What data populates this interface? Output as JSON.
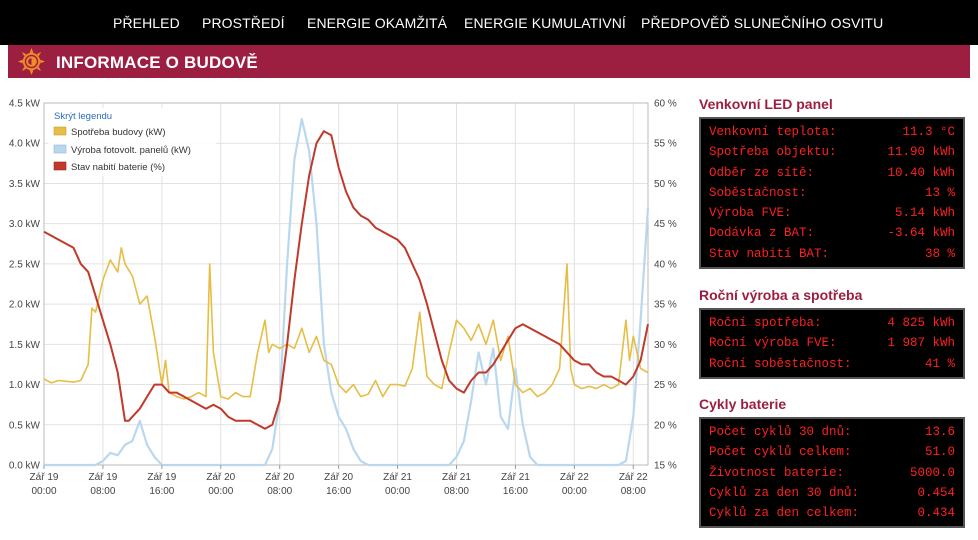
{
  "nav": {
    "items": [
      {
        "label": "PŘEHLED"
      },
      {
        "label": "PROSTŘEDÍ"
      },
      {
        "label": "ENERGIE OKAMŽITÁ"
      },
      {
        "label": "ENERGIE KUMULATIVNÍ"
      },
      {
        "label": "PŘEDPOVĚĎ SLUNEČNÍHO OSVITU"
      }
    ]
  },
  "banner": {
    "title": "INFORMACE O BUDOVĚ",
    "logo_icon": "sun-logo-icon"
  },
  "colors": {
    "brand": "#9c1f42",
    "consumption": "#e6bd45",
    "pv": "#b9d8ef",
    "battery": "#c0392b",
    "led_text": "#ff1f1f"
  },
  "chart_data": {
    "type": "line",
    "legend_toggle": "Skrýt legendu",
    "legend_position": "top-left",
    "grid": true,
    "x_ticks": [
      {
        "day": "Zář 19",
        "time": "00:00"
      },
      {
        "day": "Zář 19",
        "time": "08:00"
      },
      {
        "day": "Zář 19",
        "time": "16:00"
      },
      {
        "day": "Zář 20",
        "time": "00:00"
      },
      {
        "day": "Zář 20",
        "time": "08:00"
      },
      {
        "day": "Zář 20",
        "time": "16:00"
      },
      {
        "day": "Zář 21",
        "time": "00:00"
      },
      {
        "day": "Zář 21",
        "time": "08:00"
      },
      {
        "day": "Zář 21",
        "time": "16:00"
      },
      {
        "day": "Zář 22",
        "time": "00:00"
      },
      {
        "day": "Zář 22",
        "time": "08:00"
      }
    ],
    "x_hours_range": [
      0,
      82
    ],
    "y_left": {
      "ticks": [
        "0.0 kW",
        "0.5 kW",
        "1.0 kW",
        "1.5 kW",
        "2.0 kW",
        "2.5 kW",
        "3.0 kW",
        "3.5 kW",
        "4.0 kW",
        "4.5 kW"
      ],
      "range": [
        0,
        4.5
      ]
    },
    "y_right": {
      "ticks": [
        "15 %",
        "20 %",
        "25 %",
        "30 %",
        "35 %",
        "40 %",
        "45 %",
        "50 %",
        "55 %",
        "60 %"
      ],
      "range": [
        15,
        60
      ]
    },
    "series": [
      {
        "name": "Spotřeba budovy (kW)",
        "axis": "left",
        "points": [
          [
            0,
            1.07
          ],
          [
            1,
            1.02
          ],
          [
            2,
            1.05
          ],
          [
            4,
            1.03
          ],
          [
            5,
            1.05
          ],
          [
            6,
            1.25
          ],
          [
            6.5,
            1.95
          ],
          [
            7,
            1.9
          ],
          [
            8,
            2.3
          ],
          [
            9,
            2.55
          ],
          [
            10,
            2.4
          ],
          [
            10.5,
            2.7
          ],
          [
            11,
            2.5
          ],
          [
            12,
            2.35
          ],
          [
            13,
            2.0
          ],
          [
            14,
            2.1
          ],
          [
            15,
            1.6
          ],
          [
            16,
            1.0
          ],
          [
            16.5,
            1.3
          ],
          [
            17,
            0.9
          ],
          [
            18,
            0.85
          ],
          [
            19,
            0.82
          ],
          [
            20,
            0.85
          ],
          [
            21,
            0.9
          ],
          [
            22,
            0.85
          ],
          [
            22.5,
            2.5
          ],
          [
            23,
            1.4
          ],
          [
            24,
            0.85
          ],
          [
            25,
            0.82
          ],
          [
            26,
            0.9
          ],
          [
            27,
            0.85
          ],
          [
            28,
            0.85
          ],
          [
            29,
            1.4
          ],
          [
            30,
            1.8
          ],
          [
            30.5,
            1.4
          ],
          [
            31,
            1.5
          ],
          [
            32,
            1.45
          ],
          [
            33,
            1.5
          ],
          [
            34,
            1.45
          ],
          [
            35,
            1.7
          ],
          [
            36,
            1.4
          ],
          [
            37,
            1.6
          ],
          [
            38,
            1.3
          ],
          [
            39,
            1.25
          ],
          [
            40,
            1.0
          ],
          [
            41,
            0.9
          ],
          [
            42,
            1.0
          ],
          [
            43,
            0.85
          ],
          [
            44,
            0.88
          ],
          [
            45,
            1.05
          ],
          [
            46,
            0.85
          ],
          [
            47,
            1.0
          ],
          [
            48,
            1.0
          ],
          [
            49,
            0.98
          ],
          [
            50,
            1.2
          ],
          [
            51,
            1.9
          ],
          [
            51.5,
            1.5
          ],
          [
            52,
            1.1
          ],
          [
            53,
            1.0
          ],
          [
            54,
            0.95
          ],
          [
            55,
            1.4
          ],
          [
            56,
            1.8
          ],
          [
            57,
            1.7
          ],
          [
            58,
            1.55
          ],
          [
            59,
            1.75
          ],
          [
            60,
            1.5
          ],
          [
            61,
            1.8
          ],
          [
            62,
            1.3
          ],
          [
            63,
            1.6
          ],
          [
            64,
            1.0
          ],
          [
            65,
            0.9
          ],
          [
            66,
            0.95
          ],
          [
            67,
            0.85
          ],
          [
            68,
            0.9
          ],
          [
            69,
            1.0
          ],
          [
            70,
            1.2
          ],
          [
            71,
            2.5
          ],
          [
            71.5,
            1.2
          ],
          [
            72,
            1.0
          ],
          [
            73,
            0.95
          ],
          [
            74,
            0.98
          ],
          [
            75,
            0.95
          ],
          [
            76,
            1.0
          ],
          [
            77,
            0.95
          ],
          [
            78,
            1.0
          ],
          [
            79,
            1.8
          ],
          [
            79.5,
            1.3
          ],
          [
            80,
            1.6
          ],
          [
            81,
            1.2
          ],
          [
            82,
            1.15
          ]
        ]
      },
      {
        "name": "Výroba fotovolt. panelů (kW)",
        "axis": "left",
        "points": [
          [
            0,
            0.0
          ],
          [
            7,
            0.0
          ],
          [
            8,
            0.05
          ],
          [
            9,
            0.15
          ],
          [
            10,
            0.12
          ],
          [
            11,
            0.25
          ],
          [
            12,
            0.3
          ],
          [
            13,
            0.55
          ],
          [
            14,
            0.25
          ],
          [
            15,
            0.1
          ],
          [
            16,
            0.0
          ],
          [
            30,
            0.0
          ],
          [
            31,
            0.2
          ],
          [
            32,
            0.8
          ],
          [
            33,
            2.5
          ],
          [
            34,
            3.8
          ],
          [
            35,
            4.3
          ],
          [
            36,
            3.9
          ],
          [
            37,
            3.0
          ],
          [
            38,
            1.5
          ],
          [
            39,
            0.9
          ],
          [
            40,
            0.6
          ],
          [
            41,
            0.45
          ],
          [
            42,
            0.2
          ],
          [
            43,
            0.05
          ],
          [
            44,
            0.0
          ],
          [
            55,
            0.0
          ],
          [
            56,
            0.1
          ],
          [
            57,
            0.3
          ],
          [
            58,
            0.8
          ],
          [
            59,
            1.4
          ],
          [
            60,
            1.0
          ],
          [
            61,
            1.45
          ],
          [
            62,
            0.6
          ],
          [
            63,
            0.45
          ],
          [
            64,
            1.2
          ],
          [
            65,
            0.5
          ],
          [
            66,
            0.1
          ],
          [
            67,
            0.0
          ],
          [
            78,
            0.0
          ],
          [
            79,
            0.05
          ],
          [
            80,
            0.6
          ],
          [
            81,
            1.8
          ],
          [
            82,
            3.2
          ]
        ]
      },
      {
        "name": "Stav nabití baterie (%)",
        "axis": "right",
        "points": [
          [
            0,
            44
          ],
          [
            1,
            43.5
          ],
          [
            2,
            43
          ],
          [
            3,
            42.5
          ],
          [
            4,
            42
          ],
          [
            5,
            40
          ],
          [
            6,
            39
          ],
          [
            7,
            36
          ],
          [
            8,
            33
          ],
          [
            9,
            30
          ],
          [
            10,
            26.5
          ],
          [
            11,
            20.5
          ],
          [
            11.5,
            20.5
          ],
          [
            12,
            21
          ],
          [
            13,
            22
          ],
          [
            14,
            23.5
          ],
          [
            15,
            25
          ],
          [
            16,
            25
          ],
          [
            17,
            24
          ],
          [
            18,
            24
          ],
          [
            19,
            23.5
          ],
          [
            20,
            23
          ],
          [
            21,
            22.5
          ],
          [
            22,
            22
          ],
          [
            23,
            22.5
          ],
          [
            24,
            22
          ],
          [
            25,
            21
          ],
          [
            26,
            20.5
          ],
          [
            27,
            20.5
          ],
          [
            28,
            20.5
          ],
          [
            29,
            20
          ],
          [
            30,
            19.5
          ],
          [
            31,
            20
          ],
          [
            32,
            23
          ],
          [
            33,
            30
          ],
          [
            34,
            38
          ],
          [
            35,
            45
          ],
          [
            36,
            51
          ],
          [
            37,
            55
          ],
          [
            38,
            56.5
          ],
          [
            39,
            56
          ],
          [
            40,
            52
          ],
          [
            41,
            49
          ],
          [
            42,
            47
          ],
          [
            43,
            46
          ],
          [
            44,
            45.5
          ],
          [
            45,
            44.5
          ],
          [
            46,
            44
          ],
          [
            47,
            43.5
          ],
          [
            48,
            43
          ],
          [
            49,
            42
          ],
          [
            50,
            40
          ],
          [
            51,
            38
          ],
          [
            52,
            35
          ],
          [
            53,
            31.5
          ],
          [
            54,
            28
          ],
          [
            55,
            25.5
          ],
          [
            56,
            24.5
          ],
          [
            57,
            24
          ],
          [
            58,
            25.5
          ],
          [
            59,
            26.5
          ],
          [
            60,
            26.5
          ],
          [
            61,
            27.5
          ],
          [
            62,
            29
          ],
          [
            63,
            30.5
          ],
          [
            64,
            32
          ],
          [
            65,
            32.5
          ],
          [
            66,
            32
          ],
          [
            67,
            31.5
          ],
          [
            68,
            31
          ],
          [
            69,
            30.5
          ],
          [
            70,
            30
          ],
          [
            71,
            29
          ],
          [
            72,
            28
          ],
          [
            73,
            27.5
          ],
          [
            74,
            27.5
          ],
          [
            75,
            26.5
          ],
          [
            76,
            26
          ],
          [
            77,
            26
          ],
          [
            78,
            25.5
          ],
          [
            79,
            25
          ],
          [
            80,
            26
          ],
          [
            81,
            28
          ],
          [
            82,
            32.5
          ]
        ]
      }
    ]
  },
  "led_panel": {
    "title": "Venkovní LED panel",
    "rows": [
      {
        "label": "Venkovní teplota:",
        "value": "11.3 °C"
      },
      {
        "label": "Spotřeba objektu:",
        "value": "11.90 kWh"
      },
      {
        "label": "Odběr ze sítě:",
        "value": "10.40 kWh"
      },
      {
        "label": "Soběstačnost:",
        "value": "13 %"
      },
      {
        "label": "Výroba FVE:",
        "value": "5.14 kWh"
      },
      {
        "label": "Dodávka z BAT:",
        "value": "-3.64 kWh"
      },
      {
        "label": "Stav nabití BAT:",
        "value": "38 %"
      }
    ]
  },
  "annual_panel": {
    "title": "Roční výroba a spotřeba",
    "rows": [
      {
        "label": "Roční spotřeba:",
        "value": "4 825 kWh"
      },
      {
        "label": "Roční výroba FVE:",
        "value": "1 987 kWh"
      },
      {
        "label": "Roční soběstačnost:",
        "value": "41 %"
      }
    ]
  },
  "battery_panel": {
    "title": "Cykly baterie",
    "rows": [
      {
        "label": "Počet cyklů 30 dnů:",
        "value": "13.6"
      },
      {
        "label": "Počet cyklů celkem:",
        "value": "51.0"
      },
      {
        "label": "Životnost baterie:",
        "value": "5000.0"
      },
      {
        "label": "Cyklů za den 30 dnů:",
        "value": "0.454"
      },
      {
        "label": "Cyklů za den celkem:",
        "value": "0.434"
      }
    ]
  }
}
